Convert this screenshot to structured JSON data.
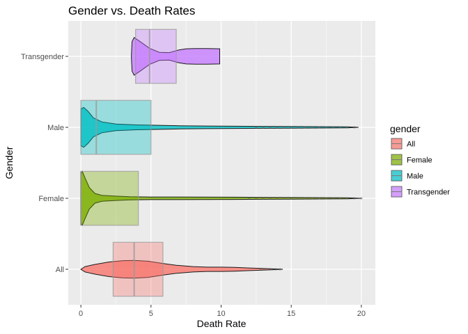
{
  "chart_data": {
    "type": "violin",
    "title": "Gender vs. Death Rates",
    "xlabel": "Death Rate",
    "ylabel": "Gender",
    "xlim": [
      -0.9,
      21.0
    ],
    "x_ticks": [
      0,
      5,
      10,
      15,
      20
    ],
    "categories": [
      "All",
      "Female",
      "Male",
      "Transgender"
    ],
    "legend": {
      "title": "gender",
      "position": "right",
      "entries": [
        "All",
        "Female",
        "Male",
        "Transgender"
      ]
    },
    "grid": true,
    "colors": {
      "All": "#F8766D",
      "Female": "#7CAE00",
      "Male": "#00BFC4",
      "Transgender": "#C77CFF"
    },
    "series": [
      {
        "name": "All",
        "boxplot": {
          "q1": 2.3,
          "median": 3.8,
          "q3": 5.85
        },
        "x_max": 14.4,
        "outliers": [
          12.8,
          13.0,
          13.3,
          13.6,
          13.9,
          14.2
        ],
        "density": [
          [
            0,
            0.0
          ],
          [
            0.3,
            0.1
          ],
          [
            1.0,
            0.18
          ],
          [
            2.0,
            0.27
          ],
          [
            3.0,
            0.32
          ],
          [
            3.8,
            0.33
          ],
          [
            4.8,
            0.3
          ],
          [
            5.8,
            0.22
          ],
          [
            6.8,
            0.15
          ],
          [
            8.0,
            0.1
          ],
          [
            9.0,
            0.08
          ],
          [
            10.0,
            0.08
          ],
          [
            11.0,
            0.07
          ],
          [
            12.0,
            0.05
          ],
          [
            13.0,
            0.03
          ],
          [
            14.0,
            0.01
          ],
          [
            14.4,
            0.0
          ]
        ]
      },
      {
        "name": "Female",
        "boxplot": {
          "q1": 0.0,
          "median": 0.0,
          "q3": 4.1
        },
        "x_max": 20.0,
        "outliers": [
          12.0,
          12.5,
          13.0,
          13.5,
          14.0,
          14.5,
          15.0,
          15.5,
          16.0,
          16.5,
          17.0,
          17.5,
          18.0,
          18.5,
          19.0,
          19.5,
          20.0
        ],
        "density": [
          [
            0,
            0.9
          ],
          [
            0.1,
            1.0
          ],
          [
            0.3,
            0.75
          ],
          [
            0.6,
            0.4
          ],
          [
            1.0,
            0.18
          ],
          [
            1.5,
            0.11
          ],
          [
            2.5,
            0.08
          ],
          [
            3.5,
            0.06
          ],
          [
            5.0,
            0.05
          ],
          [
            7.0,
            0.05
          ],
          [
            9.0,
            0.045
          ],
          [
            11.0,
            0.04
          ],
          [
            13.0,
            0.035
          ],
          [
            15.0,
            0.03
          ],
          [
            17.0,
            0.025
          ],
          [
            19.0,
            0.02
          ],
          [
            20.0,
            0.0
          ]
        ]
      },
      {
        "name": "Male",
        "boxplot": {
          "q1": 0.0,
          "median": 1.1,
          "q3": 5.0
        },
        "x_max": 19.8,
        "outliers": [
          12.5,
          13.0,
          13.5,
          14.0,
          14.5,
          15.0,
          15.5,
          16.0,
          16.5,
          17.0,
          17.5,
          18.0,
          18.5,
          19.0,
          19.5
        ],
        "density": [
          [
            0,
            0.68
          ],
          [
            0.2,
            0.74
          ],
          [
            0.5,
            0.6
          ],
          [
            0.9,
            0.35
          ],
          [
            1.5,
            0.2
          ],
          [
            2.5,
            0.12
          ],
          [
            4.0,
            0.09
          ],
          [
            5.0,
            0.08
          ],
          [
            7.0,
            0.06
          ],
          [
            9.0,
            0.05
          ],
          [
            11.0,
            0.04
          ],
          [
            13.0,
            0.035
          ],
          [
            15.0,
            0.03
          ],
          [
            17.0,
            0.025
          ],
          [
            19.0,
            0.02
          ],
          [
            19.8,
            0.0
          ]
        ]
      },
      {
        "name": "Transgender",
        "boxplot": {
          "q1": 3.9,
          "median": 4.9,
          "q3": 6.8
        },
        "x_max": 9.9,
        "outliers": [],
        "density": [
          [
            3.6,
            0.0
          ],
          [
            3.65,
            0.55
          ],
          [
            3.8,
            0.7
          ],
          [
            4.3,
            0.52
          ],
          [
            4.9,
            0.3
          ],
          [
            5.6,
            0.15
          ],
          [
            6.3,
            0.14
          ],
          [
            7.0,
            0.24
          ],
          [
            7.5,
            0.28
          ],
          [
            8.2,
            0.29
          ],
          [
            9.0,
            0.29
          ],
          [
            9.9,
            0.28
          ],
          [
            9.9,
            0.0
          ]
        ]
      }
    ]
  }
}
